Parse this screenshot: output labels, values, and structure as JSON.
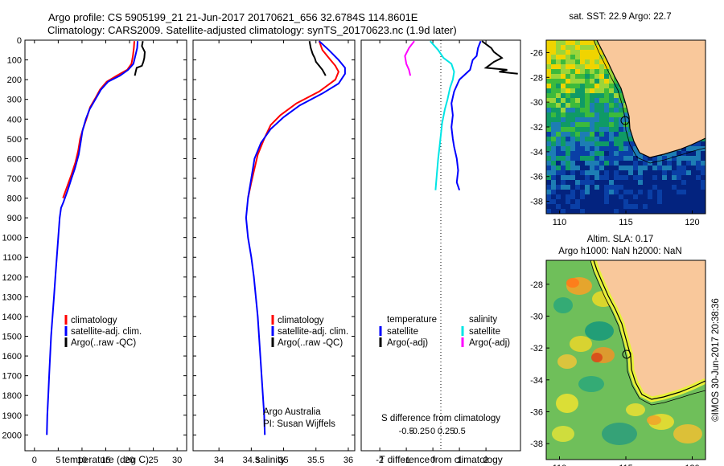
{
  "header": {
    "line1": "Argo profile: CS 5905199_21 21-Jun-2017 20170621_656 32.6784S 114.8601E",
    "line2": "Climatology: CARS2009. Satellite-adjusted climatology: synTS_20170623.nc (1.9d later)"
  },
  "colors": {
    "climatology": "#ff0000",
    "satellite": "#0000ff",
    "argo": "#000000",
    "satellite_salinity": "#00e5e5",
    "argo_salinity": "#ff00ff",
    "land": "#f9c89b"
  },
  "panels": {
    "temperature": {
      "xlabel": "temperature (deg C)",
      "legend": [
        "climatology",
        "satellite-adj. clim.",
        "Argo(..raw -QC)"
      ]
    },
    "salinity": {
      "xlabel": "salinity",
      "legend": [
        "climatology",
        "satellite-adj. clim.",
        "Argo(..raw -QC)"
      ],
      "credit1": "Argo Australia",
      "credit2": "PI: Susan Wijffels"
    },
    "difference": {
      "top_label": "S difference from climatology",
      "xlabel": "T difference from climatology",
      "legend_temp_title": "temperature",
      "legend_sal_title": "salinity",
      "legend_temp": [
        "satellite",
        "Argo(-adj)"
      ],
      "legend_sal": [
        "satellite",
        "Argo(-adj)"
      ]
    },
    "sst_map": {
      "title": "sat. SST: 22.9 Argo: 22.7"
    },
    "sla_map": {
      "title1": "Altim. SLA: 0.17",
      "title2": "Argo h1000: NaN h2000: NaN",
      "side_label": "©IMOS 30-Jun-2017 20:38:36"
    }
  },
  "chart_data": [
    {
      "type": "line",
      "id": "temperature_profile",
      "xlabel": "temperature (deg C)",
      "xlim": [
        -2,
        32
      ],
      "ylim": [
        0,
        2080
      ],
      "y_reversed": true,
      "xticks": [
        0,
        5,
        10,
        15,
        20,
        25,
        30
      ],
      "yticks": [
        0,
        100,
        200,
        300,
        400,
        500,
        600,
        700,
        800,
        900,
        1000,
        1100,
        1200,
        1300,
        1400,
        1500,
        1600,
        1700,
        1800,
        1900,
        2000
      ],
      "series": [
        {
          "name": "climatology",
          "color": "#ff0000",
          "points": [
            [
              21.0,
              5
            ],
            [
              20.9,
              40
            ],
            [
              20.7,
              80
            ],
            [
              20.4,
              120
            ],
            [
              19.5,
              150
            ],
            [
              17.3,
              180
            ],
            [
              15.2,
              210
            ],
            [
              13.8,
              250
            ],
            [
              12.9,
              290
            ],
            [
              11.7,
              340
            ],
            [
              10.9,
              400
            ],
            [
              10.2,
              450
            ],
            [
              9.6,
              500
            ],
            [
              9.2,
              560
            ],
            [
              8.6,
              620
            ],
            [
              7.8,
              680
            ],
            [
              6.9,
              740
            ],
            [
              6.0,
              800
            ]
          ]
        },
        {
          "name": "satellite-adj. clim.",
          "color": "#0000ff",
          "points": [
            [
              21.7,
              5
            ],
            [
              21.6,
              40
            ],
            [
              21.2,
              80
            ],
            [
              20.8,
              120
            ],
            [
              19.7,
              150
            ],
            [
              18.0,
              180
            ],
            [
              15.5,
              210
            ],
            [
              14.0,
              250
            ],
            [
              12.8,
              300
            ],
            [
              11.6,
              350
            ],
            [
              10.8,
              400
            ],
            [
              10.1,
              460
            ],
            [
              9.7,
              520
            ],
            [
              9.3,
              580
            ],
            [
              8.5,
              650
            ],
            [
              7.8,
              700
            ],
            [
              7.0,
              760
            ],
            [
              6.1,
              820
            ],
            [
              5.6,
              850
            ],
            [
              5.3,
              900
            ],
            [
              5.0,
              1000
            ],
            [
              4.7,
              1100
            ],
            [
              4.4,
              1200
            ],
            [
              4.1,
              1300
            ],
            [
              3.8,
              1400
            ],
            [
              3.5,
              1500
            ],
            [
              3.3,
              1600
            ],
            [
              3.1,
              1700
            ],
            [
              2.9,
              1800
            ],
            [
              2.7,
              1900
            ],
            [
              2.6,
              2000
            ]
          ]
        },
        {
          "name": "Argo(..raw -QC)",
          "color": "#000000",
          "points": [
            [
              22.8,
              5
            ],
            [
              22.6,
              30
            ],
            [
              23.2,
              60
            ],
            [
              23.1,
              90
            ],
            [
              22.9,
              110
            ],
            [
              22.6,
              130
            ],
            [
              21.5,
              140
            ],
            [
              21.3,
              160
            ],
            [
              21.1,
              180
            ]
          ]
        }
      ]
    },
    {
      "type": "line",
      "id": "salinity_profile",
      "xlabel": "salinity",
      "xlim": [
        33.6,
        36.1
      ],
      "ylim": [
        0,
        2080
      ],
      "y_reversed": true,
      "xticks": [
        34,
        34.5,
        35,
        35.5,
        36
      ],
      "yticks": [
        0,
        100,
        200,
        300,
        400,
        500,
        600,
        700,
        800,
        900,
        1000,
        1100,
        1200,
        1300,
        1400,
        1500,
        1600,
        1700,
        1800,
        1900,
        2000
      ],
      "series": [
        {
          "name": "climatology",
          "color": "#ff0000",
          "points": [
            [
              35.55,
              5
            ],
            [
              35.6,
              50
            ],
            [
              35.7,
              90
            ],
            [
              35.8,
              130
            ],
            [
              35.85,
              160
            ],
            [
              35.8,
              200
            ],
            [
              35.55,
              260
            ],
            [
              35.2,
              320
            ],
            [
              34.95,
              380
            ],
            [
              34.8,
              430
            ],
            [
              34.7,
              500
            ],
            [
              34.6,
              580
            ],
            [
              34.55,
              650
            ],
            [
              34.5,
              720
            ],
            [
              34.45,
              800
            ]
          ]
        },
        {
          "name": "satellite-adj. clim.",
          "color": "#0000ff",
          "points": [
            [
              35.55,
              5
            ],
            [
              35.7,
              50
            ],
            [
              35.85,
              100
            ],
            [
              35.95,
              140
            ],
            [
              35.95,
              170
            ],
            [
              35.85,
              220
            ],
            [
              35.6,
              270
            ],
            [
              35.25,
              330
            ],
            [
              35.0,
              390
            ],
            [
              34.8,
              450
            ],
            [
              34.65,
              520
            ],
            [
              34.55,
              600
            ],
            [
              34.5,
              700
            ],
            [
              34.45,
              800
            ],
            [
              34.42,
              900
            ],
            [
              34.45,
              1000
            ],
            [
              34.5,
              1100
            ],
            [
              34.54,
              1200
            ],
            [
              34.57,
              1300
            ],
            [
              34.6,
              1400
            ],
            [
              34.62,
              1500
            ],
            [
              34.64,
              1600
            ],
            [
              34.66,
              1700
            ],
            [
              34.68,
              1800
            ],
            [
              34.7,
              1900
            ],
            [
              34.71,
              2000
            ]
          ]
        },
        {
          "name": "Argo(..raw -QC)",
          "color": "#000000",
          "points": [
            [
              35.4,
              5
            ],
            [
              35.42,
              40
            ],
            [
              35.45,
              70
            ],
            [
              35.48,
              90
            ],
            [
              35.5,
              110
            ],
            [
              35.55,
              130
            ],
            [
              35.6,
              150
            ],
            [
              35.65,
              180
            ]
          ]
        }
      ]
    },
    {
      "type": "line",
      "id": "difference_profile",
      "xlabel": "T difference from climatology",
      "top_label": "S difference from climatology",
      "xlim": [
        -2.7,
        3.3
      ],
      "ylim": [
        0,
        2080
      ],
      "y_reversed": true,
      "xticks": [
        -2,
        -1,
        0,
        1,
        2
      ],
      "s_ticks": [
        -0.5,
        -0.25,
        0,
        0.25,
        0.5
      ],
      "series": [
        {
          "name": "temperature satellite",
          "color": "#0000ff",
          "points": [
            [
              1.8,
              5
            ],
            [
              1.7,
              40
            ],
            [
              1.65,
              80
            ],
            [
              1.5,
              100
            ],
            [
              1.4,
              150
            ],
            [
              1.0,
              200
            ],
            [
              0.8,
              260
            ],
            [
              0.7,
              320
            ],
            [
              0.75,
              380
            ],
            [
              0.7,
              440
            ],
            [
              0.75,
              500
            ],
            [
              0.8,
              540
            ],
            [
              0.9,
              600
            ],
            [
              0.95,
              660
            ],
            [
              0.9,
              720
            ],
            [
              1.0,
              760
            ]
          ]
        },
        {
          "name": "temperature Argo(-adj)",
          "color": "#000000",
          "points": [
            [
              1.85,
              5
            ],
            [
              2.2,
              40
            ],
            [
              2.3,
              60
            ],
            [
              2.6,
              90
            ],
            [
              2.3,
              110
            ],
            [
              2.0,
              140
            ],
            [
              2.8,
              150
            ],
            [
              2.5,
              160
            ],
            [
              3.2,
              170
            ]
          ]
        },
        {
          "name": "salinity satellite",
          "color": "#00e5e5",
          "points": [
            [
              -0.1,
              5
            ],
            [
              0.2,
              50
            ],
            [
              0.4,
              90
            ],
            [
              0.7,
              120
            ],
            [
              0.8,
              160
            ],
            [
              0.75,
              200
            ],
            [
              0.65,
              240
            ],
            [
              0.55,
              300
            ],
            [
              0.45,
              350
            ],
            [
              0.35,
              420
            ],
            [
              0.3,
              480
            ],
            [
              0.25,
              540
            ],
            [
              0.2,
              600
            ],
            [
              0.15,
              680
            ],
            [
              0.1,
              760
            ]
          ]
        },
        {
          "name": "salinity Argo(-adj)",
          "color": "#ff00ff",
          "points": [
            [
              -0.7,
              5
            ],
            [
              -0.9,
              40
            ],
            [
              -1.05,
              80
            ],
            [
              -1.0,
              120
            ],
            [
              -0.9,
              150
            ],
            [
              -0.85,
              180
            ]
          ]
        }
      ]
    },
    {
      "type": "heatmap",
      "id": "sst_map",
      "title": "sat. SST: 22.9 Argo: 22.7",
      "xlim": [
        109,
        121
      ],
      "ylim": [
        -39,
        -25
      ],
      "xticks": [
        110,
        115,
        120
      ],
      "yticks": [
        -26,
        -28,
        -30,
        -32,
        -34,
        -36,
        -38
      ],
      "argo_position": [
        114.86,
        -32.68
      ]
    },
    {
      "type": "heatmap",
      "id": "sla_map",
      "title": "Altim. SLA: 0.17",
      "xlim": [
        109,
        121
      ],
      "ylim": [
        -39,
        -26.5
      ],
      "xticks": [
        110,
        115,
        120
      ],
      "yticks": [
        -28,
        -30,
        -32,
        -34,
        -36,
        -38
      ],
      "argo_position": [
        114.86,
        -32.68
      ]
    }
  ]
}
